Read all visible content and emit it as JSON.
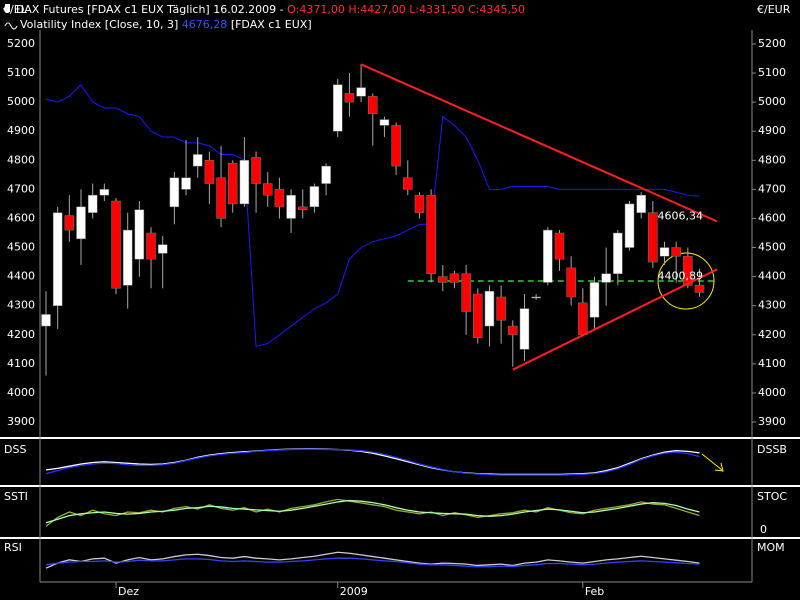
{
  "chart_data": [
    {
      "type": "candlestick",
      "title": "DAX Futures [FDAX c1 EUX  Täglich] 16.02.2009 -",
      "header_values": [
        "O:4371,00",
        "H:4427,00",
        "L:4331,50",
        "C:4345,50"
      ],
      "ylabel_left": "€/EL",
      "ylabel_right": "€/EUR",
      "categories": [
        null,
        null,
        null,
        null,
        null,
        null,
        "Dez",
        null,
        null,
        null,
        null,
        null,
        null,
        null,
        null,
        null,
        null,
        null,
        null,
        null,
        null,
        null,
        null,
        null,
        null,
        "2009",
        null,
        null,
        null,
        null,
        null,
        null,
        null,
        null,
        null,
        null,
        null,
        null,
        null,
        null,
        null,
        null,
        null,
        null,
        null,
        null,
        "Feb",
        null,
        null,
        null,
        null,
        null,
        null,
        null,
        null,
        null,
        null
      ],
      "open": [
        4230,
        4300,
        4610,
        4530,
        4620,
        4680,
        4660,
        4370,
        4460,
        4550,
        4480,
        4640,
        4700,
        4780,
        4800,
        4740,
        4790,
        4650,
        4810,
        4720,
        4700,
        4600,
        4640,
        4640,
        4720,
        4900,
        5030,
        5020,
        5020,
        4920,
        4920,
        4740,
        4680,
        4680,
        4400,
        4410,
        4410,
        4340,
        4230,
        4330,
        4230,
        4150,
        4330,
        4380,
        4550,
        4430,
        4310,
        4260,
        4380,
        4410,
        4500,
        4620,
        4620,
        4470,
        4500,
        4470,
        4371
      ],
      "high": [
        4350,
        4640,
        4680,
        4700,
        4720,
        4720,
        4670,
        4620,
        4660,
        4570,
        4540,
        4760,
        4870,
        4880,
        4830,
        4850,
        4800,
        4880,
        4830,
        4760,
        4740,
        4700,
        4700,
        4720,
        4790,
        5080,
        5100,
        5130,
        5030,
        4950,
        4930,
        4800,
        4690,
        4700,
        4440,
        4420,
        4440,
        4360,
        4370,
        4370,
        4250,
        4340,
        4340,
        4570,
        4560,
        4470,
        4360,
        4400,
        4500,
        4560,
        4660,
        4690,
        4660,
        4520,
        4520,
        4500,
        4427
      ],
      "low": [
        4060,
        4220,
        4520,
        4440,
        4600,
        4660,
        4340,
        4290,
        4400,
        4360,
        4360,
        4580,
        4680,
        4740,
        4650,
        4570,
        4620,
        4640,
        4620,
        4640,
        4600,
        4550,
        4600,
        4620,
        4680,
        4880,
        4950,
        5000,
        4850,
        4880,
        4750,
        4680,
        4600,
        4380,
        4350,
        4360,
        4200,
        4170,
        4160,
        4170,
        4090,
        4110,
        4320,
        4370,
        4420,
        4300,
        4200,
        4220,
        4300,
        4370,
        4490,
        4600,
        4430,
        4440,
        4380,
        4360,
        4331.5
      ],
      "close": [
        4270,
        4620,
        4560,
        4640,
        4680,
        4700,
        4360,
        4560,
        4630,
        4460,
        4510,
        4740,
        4740,
        4820,
        4720,
        4600,
        4650,
        4800,
        4720,
        4680,
        4640,
        4680,
        4630,
        4710,
        4780,
        5060,
        5000,
        5050,
        4960,
        4940,
        4780,
        4700,
        4620,
        4410,
        4380,
        4380,
        4280,
        4190,
        4350,
        4250,
        4200,
        4290,
        4330,
        4560,
        4460,
        4330,
        4200,
        4380,
        4410,
        4550,
        4650,
        4680,
        4450,
        4500,
        4470,
        4370,
        4345.5
      ],
      "up_color": "#ffffff",
      "down_color": "#ff0000",
      "overlay": {
        "name": "Volatility Index [Close, 10, 3]",
        "value_label": "4676,28",
        "source": "[FDAX c1 EUX]",
        "color": "#1a1aff",
        "values": [
          5010,
          5000,
          5020,
          5060,
          5000,
          4980,
          4980,
          4960,
          4950,
          4900,
          4880,
          4880,
          4860,
          4860,
          4850,
          4820,
          4820,
          4800,
          4160,
          4170,
          4200,
          4230,
          4260,
          4290,
          4310,
          4340,
          4460,
          4500,
          4520,
          4530,
          4540,
          4560,
          4580,
          4580,
          4950,
          4920,
          4880,
          4800,
          4700,
          4700,
          4710,
          4710,
          4710,
          4710,
          4700,
          4700,
          4700,
          4700,
          4700,
          4700,
          4700,
          4700,
          4700,
          4700,
          4690,
          4680,
          4676.28
        ]
      },
      "lines": [
        {
          "from": [
            27,
            5130
          ],
          "to": [
            57.5,
            4590
          ],
          "color": "#ff2020",
          "label": {
            "value": 4606.34,
            "label": "4606,34"
          }
        },
        {
          "from": [
            40,
            4080
          ],
          "to": [
            57.5,
            4425
          ],
          "color": "#ff2020",
          "label": {
            "value": 4400.89,
            "label": "4400,89"
          }
        }
      ],
      "hline": {
        "value": 4385,
        "from": 31,
        "to": 57.5,
        "color": "#33cc33"
      },
      "ylim": [
        3852,
        5248
      ],
      "yticks": [
        3900,
        4000,
        4100,
        4200,
        4300,
        4400,
        4500,
        4600,
        4700,
        4800,
        4900,
        5000,
        5100,
        5200
      ]
    },
    {
      "type": "line",
      "label_left": "DSS",
      "label_right": "DSSB",
      "ylim": [
        0,
        100
      ],
      "series": [
        {
          "color": "#ffffff",
          "values": [
            30,
            34,
            40,
            46,
            50,
            52,
            50,
            48,
            46,
            45,
            46,
            50,
            56,
            64,
            70,
            74,
            77,
            79,
            81,
            83,
            85,
            86,
            87,
            87,
            86,
            85,
            83,
            80,
            75,
            68,
            60,
            52,
            44,
            36,
            30,
            25,
            22,
            20,
            19,
            18,
            18,
            18,
            18,
            18,
            18,
            19,
            20,
            22,
            28,
            36,
            48,
            60,
            70,
            78,
            82,
            80,
            76
          ]
        },
        {
          "color": "#2233ff",
          "values": [
            20,
            28,
            36,
            42,
            46,
            48,
            47,
            44,
            42,
            42,
            44,
            48,
            55,
            62,
            68,
            72,
            75,
            77,
            80,
            82,
            84,
            85,
            86,
            86,
            85,
            85,
            84,
            82,
            78,
            72,
            64,
            55,
            46,
            38,
            31,
            25,
            21,
            19,
            17,
            16,
            16,
            16,
            16,
            16,
            16,
            17,
            18,
            20,
            25,
            33,
            45,
            58,
            68,
            75,
            78,
            74,
            66
          ]
        }
      ]
    },
    {
      "type": "line",
      "label_left": "SSTI",
      "label_right": "STOC",
      "ylim": [
        0,
        100
      ],
      "yticks": [
        0
      ],
      "series": [
        {
          "color": "#99aa33",
          "values": [
            10,
            35,
            50,
            40,
            55,
            45,
            40,
            50,
            48,
            55,
            50,
            60,
            65,
            58,
            70,
            60,
            55,
            62,
            50,
            58,
            50,
            60,
            65,
            70,
            78,
            85,
            80,
            75,
            70,
            65,
            55,
            50,
            45,
            50,
            40,
            48,
            42,
            35,
            40,
            45,
            48,
            55,
            50,
            62,
            55,
            48,
            45,
            55,
            60,
            65,
            70,
            78,
            72,
            70,
            60,
            50,
            40
          ]
        },
        {
          "color": "#aaffaa",
          "values": [
            20,
            30,
            40,
            45,
            48,
            50,
            46,
            44,
            46,
            50,
            52,
            55,
            60,
            62,
            66,
            64,
            60,
            58,
            56,
            54,
            52,
            55,
            60,
            66,
            72,
            78,
            82,
            80,
            76,
            70,
            62,
            55,
            50,
            48,
            46,
            45,
            44,
            40,
            38,
            40,
            44,
            50,
            54,
            58,
            56,
            52,
            48,
            50,
            55,
            60,
            66,
            72,
            76,
            74,
            68,
            58,
            50
          ]
        }
      ]
    },
    {
      "type": "line",
      "label_left": "RSI",
      "label_right": "MOM",
      "ylim": [
        0,
        100
      ],
      "series": [
        {
          "color": "#cccccc",
          "values": [
            30,
            45,
            55,
            50,
            58,
            60,
            45,
            55,
            62,
            55,
            58,
            65,
            70,
            72,
            68,
            62,
            60,
            65,
            60,
            58,
            55,
            58,
            62,
            66,
            72,
            78,
            75,
            70,
            65,
            60,
            55,
            50,
            45,
            42,
            45,
            44,
            42,
            38,
            40,
            42,
            38,
            45,
            48,
            55,
            52,
            48,
            45,
            50,
            55,
            58,
            62,
            66,
            62,
            58,
            54,
            50,
            45
          ]
        },
        {
          "color": "#3344ff",
          "values": [
            40,
            45,
            48,
            50,
            50,
            52,
            48,
            50,
            54,
            52,
            52,
            55,
            58,
            58,
            56,
            52,
            50,
            52,
            50,
            48,
            48,
            50,
            52,
            55,
            58,
            60,
            60,
            58,
            55,
            52,
            50,
            46,
            42,
            40,
            40,
            38,
            36,
            34,
            34,
            36,
            35,
            38,
            40,
            44,
            44,
            42,
            40,
            42,
            45,
            48,
            50,
            52,
            50,
            48,
            46,
            44,
            42
          ]
        }
      ]
    }
  ]
}
